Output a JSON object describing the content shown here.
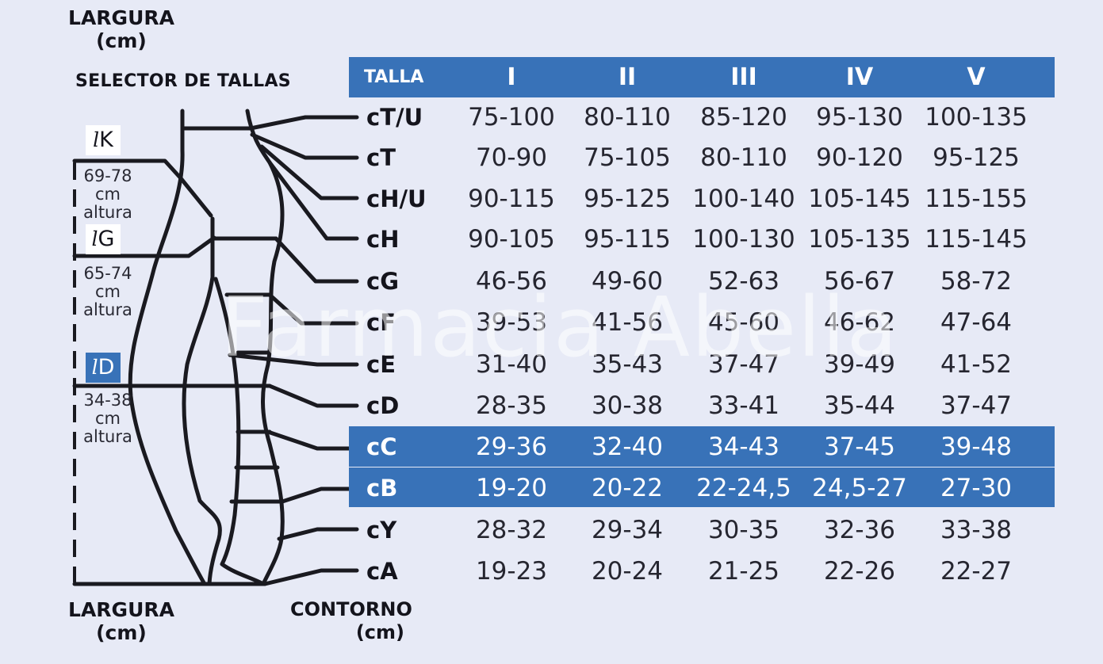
{
  "labels": {
    "largura_top": "LARGURA\n(cm)",
    "selector": "SELECTOR DE TALLAS",
    "largura_bottom": "LARGURA\n(cm)",
    "contorno": "CONTORNO\n(cm)"
  },
  "length_tags": [
    {
      "prefix": "l",
      "letter": "K",
      "range": "69-78",
      "unit": "cm",
      "word": "altura"
    },
    {
      "prefix": "l",
      "letter": "G",
      "range": "65-74",
      "unit": "cm",
      "word": "altura"
    },
    {
      "prefix": "l",
      "letter": "D",
      "range": "34-38",
      "unit": "cm",
      "word": "altura"
    }
  ],
  "watermark": "Farmacia Abella",
  "colors": {
    "accent": "#3872b8",
    "background": "#e7eaf6"
  },
  "chart_data": {
    "type": "table",
    "columns": [
      "TALLA",
      "I",
      "II",
      "III",
      "IV",
      "V"
    ],
    "rows": [
      {
        "name": "cT/U",
        "values": [
          "75-100",
          "80-110",
          "85-120",
          "95-130",
          "100-135"
        ]
      },
      {
        "name": "cT",
        "values": [
          "70-90",
          "75-105",
          "80-110",
          "90-120",
          "95-125"
        ]
      },
      {
        "name": "cH/U",
        "values": [
          "90-115",
          "95-125",
          "100-140",
          "105-145",
          "115-155"
        ]
      },
      {
        "name": "cH",
        "values": [
          "90-105",
          "95-115",
          "100-130",
          "105-135",
          "115-145"
        ]
      },
      {
        "name": "cG",
        "values": [
          "46-56",
          "49-60",
          "52-63",
          "56-67",
          "58-72"
        ]
      },
      {
        "name": "cF",
        "values": [
          "39-53",
          "41-56",
          "45-60",
          "46-62",
          "47-64"
        ]
      },
      {
        "name": "cE",
        "values": [
          "31-40",
          "35-43",
          "37-47",
          "39-49",
          "41-52"
        ]
      },
      {
        "name": "cD",
        "values": [
          "28-35",
          "30-38",
          "33-41",
          "35-44",
          "37-47"
        ]
      },
      {
        "name": "cC",
        "values": [
          "29-36",
          "32-40",
          "34-43",
          "37-45",
          "39-48"
        ],
        "highlighted": true
      },
      {
        "name": "cB",
        "values": [
          "19-20",
          "20-22",
          "22-24,5",
          "24,5-27",
          "27-30"
        ],
        "highlighted": true
      },
      {
        "name": "cY",
        "values": [
          "28-32",
          "29-34",
          "30-35",
          "32-36",
          "33-38"
        ]
      },
      {
        "name": "cA",
        "values": [
          "19-23",
          "20-24",
          "21-25",
          "22-26",
          "22-27"
        ]
      }
    ]
  }
}
